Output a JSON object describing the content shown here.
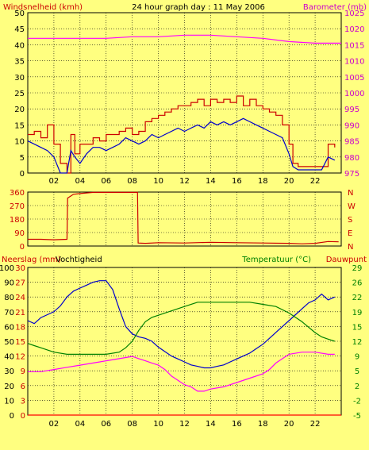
{
  "chart_data": [
    {
      "type": "line",
      "title": "24 hour graph day : 11 May 2006",
      "ylabel_left": "Windsnelheid (kmh)",
      "ylabel_right": "Barometer (mb)",
      "ylim_left": [
        0,
        50
      ],
      "ylim_right": [
        975,
        1025
      ],
      "xlim": [
        0,
        24
      ],
      "x_ticks": [
        "02",
        "04",
        "06",
        "08",
        "10",
        "12",
        "14",
        "16",
        "18",
        "20",
        "22"
      ],
      "y_ticks_left": [
        "0",
        "5",
        "10",
        "15",
        "20",
        "25",
        "30",
        "35",
        "40",
        "45",
        "50"
      ],
      "y_ticks_right": [
        "975",
        "980",
        "985",
        "990",
        "995",
        "1000",
        "1005",
        "1010",
        "1015",
        "1020",
        "1025"
      ],
      "grid": true,
      "series": [
        {
          "name": "Windsnelheid (kmh)",
          "axis": "left",
          "color": "#0000cc",
          "x": [
            0,
            0.5,
            1,
            1.5,
            2,
            2.5,
            3,
            3.3,
            3.6,
            4,
            4.5,
            5,
            5.5,
            6,
            6.5,
            7,
            7.5,
            8,
            8.5,
            9,
            9.5,
            10,
            10.5,
            11,
            11.5,
            12,
            12.5,
            13,
            13.5,
            14,
            14.5,
            15,
            15.5,
            16,
            16.5,
            17,
            17.5,
            18,
            18.5,
            19,
            19.5,
            20,
            20.3,
            20.7,
            21,
            21.5,
            22,
            22.5,
            23,
            23.5
          ],
          "values": [
            10,
            9,
            8,
            7,
            5,
            0,
            0,
            7,
            5,
            3,
            6,
            8,
            8,
            7,
            8,
            9,
            11,
            10,
            9,
            10,
            12,
            11,
            12,
            13,
            14,
            13,
            14,
            15,
            14,
            16,
            15,
            16,
            15,
            16,
            17,
            16,
            15,
            14,
            13,
            12,
            11,
            6,
            2,
            1,
            1,
            1,
            1,
            1,
            5,
            4
          ]
        },
        {
          "name": "Windstoot (kmh)",
          "axis": "left",
          "color": "#cc0000",
          "x": [
            0,
            0.5,
            1,
            1.5,
            2,
            2.5,
            3,
            3.3,
            3.6,
            4,
            4.5,
            5,
            5.5,
            6,
            6.5,
            7,
            7.5,
            8,
            8.5,
            9,
            9.5,
            10,
            10.5,
            11,
            11.5,
            12,
            12.5,
            13,
            13.5,
            14,
            14.5,
            15,
            15.5,
            16,
            16.5,
            17,
            17.5,
            18,
            18.5,
            19,
            19.5,
            20,
            20.3,
            20.7,
            21,
            21.5,
            22,
            22.5,
            23,
            23.5
          ],
          "values": [
            12,
            13,
            11,
            15,
            9,
            3,
            0,
            12,
            6,
            9,
            9,
            11,
            10,
            12,
            12,
            13,
            14,
            12,
            13,
            16,
            17,
            18,
            19,
            20,
            21,
            21,
            22,
            23,
            21,
            23,
            22,
            23,
            22,
            24,
            21,
            23,
            21,
            20,
            19,
            18,
            15,
            9,
            3,
            2,
            2,
            2,
            2,
            2,
            9,
            8
          ]
        },
        {
          "name": "Barometer (mb)",
          "axis": "right",
          "color": "#ff00ff",
          "x": [
            0,
            2,
            4,
            6,
            8,
            10,
            12,
            14,
            16,
            18,
            20,
            22,
            24
          ],
          "values": [
            1017,
            1017,
            1017,
            1017,
            1017.5,
            1017.5,
            1018,
            1018,
            1017.5,
            1017,
            1016,
            1015.5,
            1015.5
          ]
        }
      ]
    },
    {
      "type": "line",
      "ylim": [
        0,
        360
      ],
      "xlim": [
        0,
        24
      ],
      "y_ticks": [
        "0",
        "90",
        "180",
        "270",
        "360"
      ],
      "y_ticks_right": [
        "N",
        "E",
        "S",
        "W",
        "N"
      ],
      "grid": true,
      "series": [
        {
          "name": "Windrichting",
          "color": "#cc0000",
          "x": [
            0,
            1,
            2,
            3,
            3.05,
            3.5,
            4,
            5,
            6,
            7,
            8,
            8.4,
            8.45,
            9,
            10,
            12,
            14,
            16,
            18,
            20,
            21,
            22,
            23,
            23.8
          ],
          "values": [
            45,
            45,
            42,
            45,
            320,
            345,
            350,
            358,
            358,
            358,
            358,
            358,
            20,
            18,
            22,
            20,
            25,
            22,
            20,
            18,
            15,
            18,
            30,
            28
          ]
        }
      ]
    },
    {
      "type": "line",
      "ylabel_left": "Neerslag (mm)",
      "ylabel_left2": "Vochtigheid",
      "ylabel_right": "Temperatuur (°C)",
      "ylabel_right2": "Dauwpunt",
      "ylim_left": [
        0,
        100
      ],
      "ylim_left2": [
        0,
        30
      ],
      "ylim_right": [
        -5,
        29
      ],
      "xlim": [
        0,
        24
      ],
      "x_ticks": [
        "02",
        "04",
        "06",
        "08",
        "10",
        "12",
        "14",
        "16",
        "18",
        "20",
        "22"
      ],
      "y_ticks_left": [
        "0",
        "10",
        "20",
        "30",
        "40",
        "50",
        "60",
        "70",
        "80",
        "90",
        "100"
      ],
      "y_ticks_left2": [
        "0",
        "3",
        "6",
        "9",
        "12",
        "15",
        "18",
        "21",
        "24",
        "27",
        "30"
      ],
      "y_ticks_right": [
        "-5",
        "-2",
        "2",
        "5",
        "9",
        "12",
        "15",
        "19",
        "22",
        "26",
        "29"
      ],
      "grid": true,
      "series": [
        {
          "name": "Vochtigheid",
          "axis": "left",
          "color": "#0000cc",
          "x": [
            0,
            0.5,
            1,
            1.5,
            2,
            2.5,
            3,
            3.5,
            4,
            4.5,
            5,
            5.5,
            6,
            6.5,
            7,
            7.5,
            8,
            8.5,
            9,
            9.5,
            10,
            10.5,
            11,
            11.5,
            12,
            12.5,
            13,
            13.5,
            14,
            14.5,
            15,
            15.5,
            16,
            16.5,
            17,
            17.5,
            18,
            18.5,
            19,
            19.5,
            20,
            20.5,
            21,
            21.5,
            22,
            22.5,
            23,
            23.5
          ],
          "values": [
            64,
            62,
            66,
            68,
            70,
            74,
            80,
            84,
            86,
            88,
            90,
            91,
            91,
            85,
            72,
            60,
            55,
            53,
            52,
            50,
            46,
            43,
            40,
            38,
            36,
            34,
            33,
            32,
            32,
            33,
            34,
            36,
            38,
            40,
            42,
            45,
            48,
            52,
            56,
            60,
            64,
            68,
            72,
            76,
            78,
            82,
            78,
            80
          ]
        },
        {
          "name": "Temperatuur",
          "axis": "right",
          "color": "#008000",
          "x": [
            0,
            0.5,
            1,
            1.5,
            2,
            3,
            4,
            5,
            6,
            7,
            7.5,
            8,
            8.5,
            9,
            9.5,
            10,
            11,
            12,
            13,
            14,
            15,
            16,
            17,
            18,
            19,
            20,
            21,
            22,
            22.5,
            23,
            23.5
          ],
          "values": [
            11.5,
            11,
            10.5,
            10,
            9.5,
            9,
            9,
            9,
            9,
            9.5,
            10.5,
            12,
            14.5,
            16.5,
            17.5,
            18,
            19,
            20,
            21,
            21,
            21,
            21,
            21,
            20.5,
            20,
            18.5,
            16.5,
            14,
            13,
            12.5,
            12
          ]
        },
        {
          "name": "Dauwpunt",
          "axis": "right",
          "color": "#ff00ff",
          "x": [
            0,
            1,
            2,
            3,
            4,
            5,
            6,
            7,
            8,
            8.5,
            9,
            9.5,
            10,
            10.5,
            11,
            11.5,
            12,
            12.5,
            13,
            13.5,
            14,
            15,
            16,
            17,
            18,
            18.5,
            19,
            19.5,
            20,
            21,
            22,
            23,
            23.5
          ],
          "values": [
            5,
            5,
            5.5,
            6,
            6.5,
            7,
            7.5,
            8,
            8.5,
            8,
            7.5,
            7,
            6.5,
            5.5,
            4,
            3,
            2,
            1.5,
            0.5,
            0.5,
            1,
            1.5,
            2.5,
            3.5,
            4.5,
            5.5,
            7,
            8,
            9,
            9.5,
            9.5,
            9,
            9
          ]
        },
        {
          "name": "Neerslag (mm)",
          "axis": "left2",
          "color": "#ff0000",
          "x": [
            0,
            24
          ],
          "values": [
            0,
            0
          ]
        }
      ]
    }
  ]
}
